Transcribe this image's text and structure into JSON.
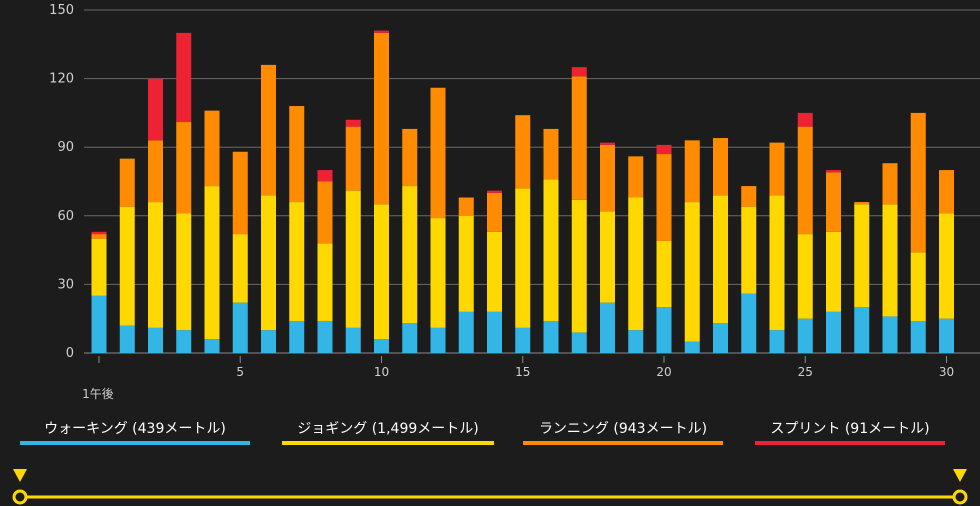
{
  "chart_data": {
    "type": "bar",
    "stacked": true,
    "x": [
      1,
      2,
      3,
      4,
      5,
      6,
      7,
      8,
      9,
      10,
      11,
      12,
      13,
      14,
      15,
      16,
      17,
      18,
      19,
      20,
      21,
      22,
      23,
      24,
      25,
      26,
      27,
      28,
      29,
      30,
      31,
      32
    ],
    "x_tick_labels": [
      {
        "x": 1,
        "label": "1午後"
      },
      {
        "x": 6,
        "label": "5"
      },
      {
        "x": 11,
        "label": "10"
      },
      {
        "x": 16,
        "label": "15"
      },
      {
        "x": 21,
        "label": "20"
      },
      {
        "x": 26,
        "label": "25"
      },
      {
        "x": 31,
        "label": "30"
      }
    ],
    "y_ticks": [
      0,
      30,
      60,
      90,
      120,
      150
    ],
    "ylim": [
      0,
      150
    ],
    "grid": true,
    "series": [
      {
        "name": "ウォーキング (439メートル)",
        "color": "#33b5e5",
        "values": [
          25,
          12,
          11,
          10,
          6,
          22,
          10,
          14,
          14,
          11,
          6,
          13,
          11,
          18,
          18,
          11,
          14,
          9,
          22,
          10,
          20,
          5,
          13,
          26,
          10,
          15,
          18,
          20,
          16,
          14,
          15,
          0
        ]
      },
      {
        "name": "ジョギング (1,499メートル)",
        "color": "#ffd800",
        "values": [
          25,
          52,
          55,
          51,
          67,
          30,
          59,
          52,
          34,
          60,
          59,
          60,
          48,
          42,
          35,
          61,
          62,
          58,
          40,
          58,
          29,
          61,
          56,
          38,
          59,
          37,
          35,
          45,
          49,
          30,
          46,
          0
        ]
      },
      {
        "name": "ランニング (943メートル)",
        "color": "#ff8c00",
        "values": [
          2,
          21,
          27,
          40,
          33,
          36,
          57,
          42,
          27,
          28,
          75,
          25,
          57,
          8,
          17,
          32,
          22,
          54,
          29,
          18,
          38,
          27,
          25,
          9,
          23,
          47,
          26,
          1,
          18,
          61,
          19,
          0
        ]
      },
      {
        "name": "スプリント (91メートル)",
        "color": "#ee2233",
        "values": [
          1,
          0,
          27,
          39,
          0,
          0,
          0,
          0,
          5,
          3,
          1,
          0,
          0,
          0,
          1,
          0,
          0,
          4,
          1,
          0,
          4,
          0,
          0,
          0,
          0,
          6,
          1,
          0,
          0,
          0,
          0,
          0
        ]
      }
    ]
  }
}
